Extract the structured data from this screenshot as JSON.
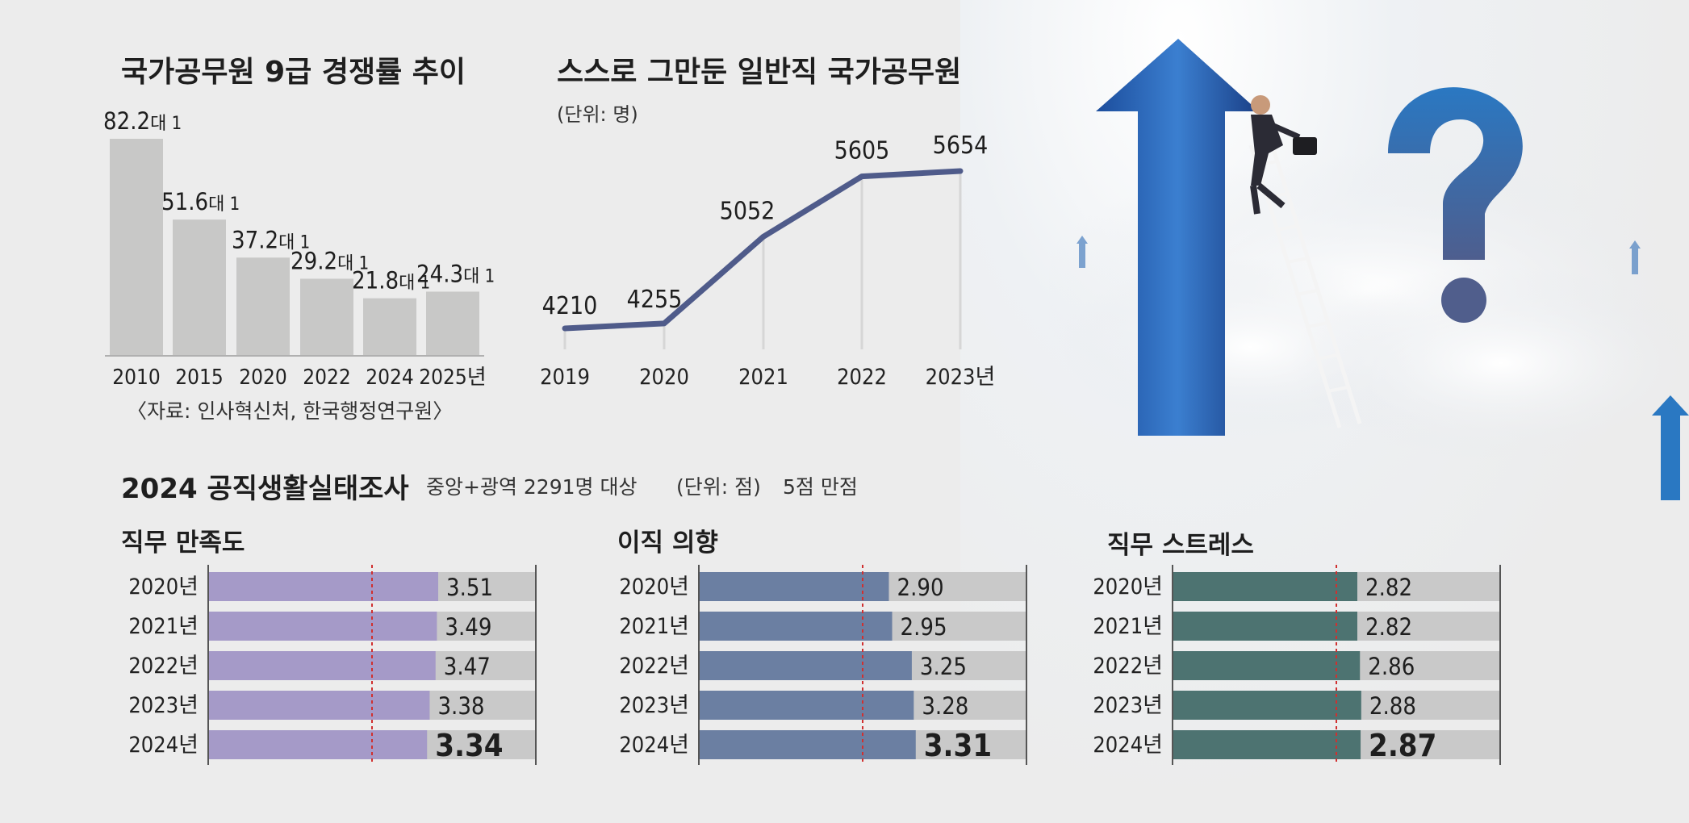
{
  "colors": {
    "gray_bar": "#c8c8c7",
    "line": "#4f5b8a",
    "track": "#c9c9c9",
    "purple": "#a59ac8",
    "slate": "#6b7fa2",
    "teal": "#4d7371",
    "dashed": "#d03030"
  },
  "competition": {
    "title": "국가공무원 9급 경쟁률 추이",
    "source": "〈자료: 인사혁신처, 한국행정연구원〉"
  },
  "resign": {
    "title": "스스로 그만둔 일반직 국가공무원",
    "unit": "(단위: 명)"
  },
  "survey": {
    "title": "2024 공직생활실태조사",
    "subtitle": "중앙+광역 2291명 대상",
    "unit": "(단위: 점)",
    "scale": "5점 만점"
  },
  "chart_data": [
    {
      "type": "bar",
      "title": "국가공무원 9급 경쟁률 추이",
      "categories": [
        "2010",
        "2015",
        "2020",
        "2022",
        "2024",
        "2025년"
      ],
      "values": [
        82.2,
        51.6,
        37.2,
        29.2,
        21.8,
        24.3
      ],
      "value_labels": [
        "82.2대 1",
        "51.6대 1",
        "37.2대 1",
        "29.2대 1",
        "21.8대 1",
        "24.3대 1"
      ]
    },
    {
      "type": "line",
      "title": "스스로 그만둔 일반직 국가공무원",
      "x": [
        "2019",
        "2020",
        "2021",
        "2022",
        "2023년"
      ],
      "values": [
        4210,
        4255,
        5052,
        5605,
        5654
      ]
    },
    {
      "type": "bar",
      "title": "직무 만족도",
      "categories": [
        "2020년",
        "2021년",
        "2022년",
        "2023년",
        "2024년"
      ],
      "values": [
        3.51,
        3.49,
        3.47,
        3.38,
        3.34
      ],
      "value_labels": [
        "3.51",
        "3.49",
        "3.47",
        "3.38",
        "3.34"
      ],
      "ylim": [
        0,
        5
      ]
    },
    {
      "type": "bar",
      "title": "이직 의향",
      "categories": [
        "2020년",
        "2021년",
        "2022년",
        "2023년",
        "2024년"
      ],
      "values": [
        2.9,
        2.95,
        3.25,
        3.28,
        3.31
      ],
      "value_labels": [
        "2.90",
        "2.95",
        "3.25",
        "3.28",
        "3.31"
      ],
      "ylim": [
        0,
        5
      ]
    },
    {
      "type": "bar",
      "title": "직무 스트레스",
      "categories": [
        "2020년",
        "2021년",
        "2022년",
        "2023년",
        "2024년"
      ],
      "values": [
        2.82,
        2.82,
        2.86,
        2.88,
        2.87
      ],
      "value_labels": [
        "2.82",
        "2.82",
        "2.86",
        "2.88",
        "2.87"
      ],
      "ylim": [
        0,
        5
      ]
    }
  ]
}
